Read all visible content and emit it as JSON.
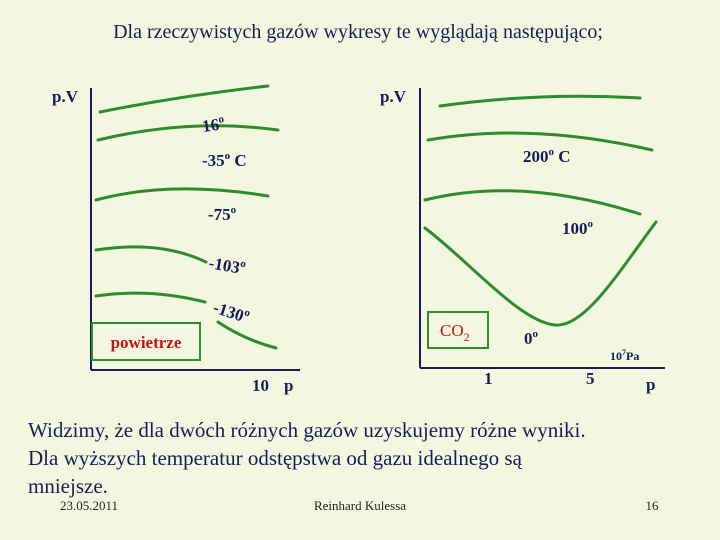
{
  "title": "Dla rzeczywistych gazów wykresy te wyglądają następująco;",
  "left_graph": {
    "y_label": "p.V",
    "curve_labels": [
      {
        "text": "16",
        "sup": "o"
      },
      {
        "text": "-35",
        "sup": "o",
        "suffix": " C"
      },
      {
        "text": "-75",
        "sup": "o"
      },
      {
        "text": "-103",
        "sup": "o"
      },
      {
        "text": "-130",
        "sup": "o"
      }
    ],
    "box_label": "powietrze",
    "x_tick": "10",
    "x_label": "p"
  },
  "right_graph": {
    "y_label": "p.V",
    "curve_labels": [
      {
        "text": "200",
        "sup": "o",
        "suffix": " C"
      },
      {
        "text": "100",
        "sup": "o"
      },
      {
        "text": "0",
        "sup": "o"
      }
    ],
    "box_label": {
      "text": "CO",
      "sub": "2"
    },
    "x_ticks": [
      "1",
      "5"
    ],
    "x_unit": {
      "base": "10",
      "exp": "7",
      "unit": "Pa"
    },
    "x_label": "p"
  },
  "body": [
    "Widzimy, że dla dwóch różnych gazów uzyskujemy różne wyniki.",
    "Dla wyższych temperatur odstępstwa od gazu idealnego są",
    "mniejsze."
  ],
  "footer": {
    "date": "23.05.2011",
    "author": "Reinhard Kulessa",
    "page": "16"
  }
}
